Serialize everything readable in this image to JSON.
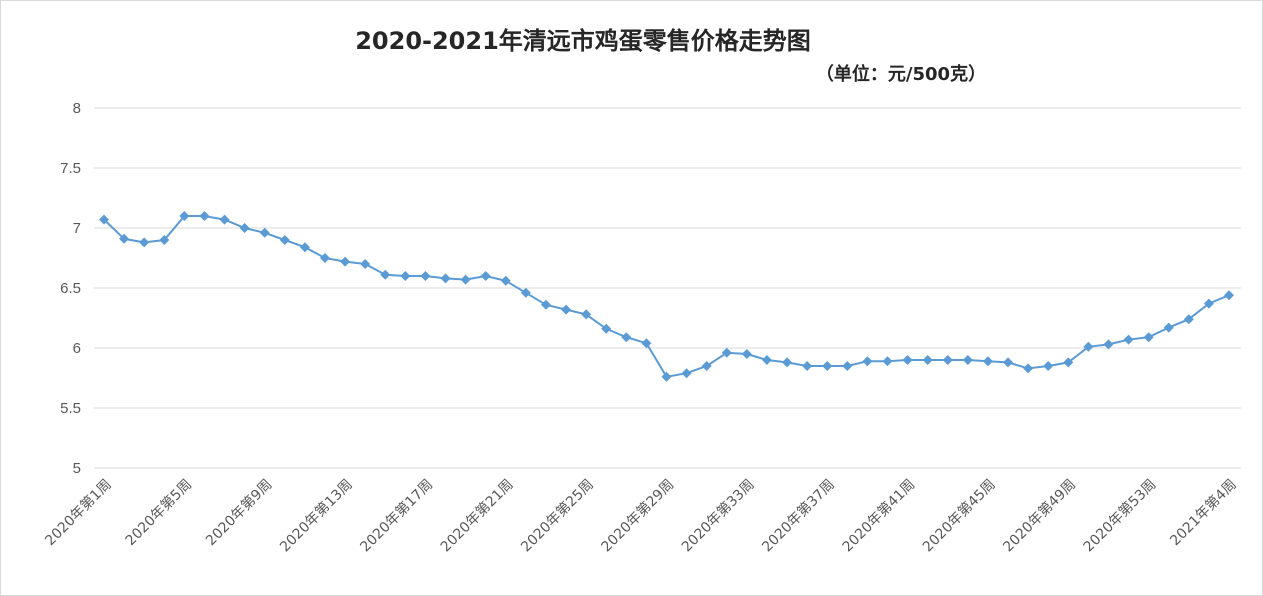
{
  "chart_data": {
    "type": "line",
    "title": "2020-2021年清远市鸡蛋零售价格走势图",
    "subtitle": "（单位：元/500克）",
    "xlabel": "",
    "ylabel": "",
    "ylim": [
      5,
      8
    ],
    "yticks": [
      "5",
      "5.5",
      "6",
      "6.5",
      "7",
      "7.5",
      "8"
    ],
    "grid": true,
    "legend": "none",
    "series_color": "#5B9BD5",
    "categories": [
      "2020年第1周",
      "2020年第2周",
      "2020年第3周",
      "2020年第4周",
      "2020年第5周",
      "2020年第6周",
      "2020年第7周",
      "2020年第8周",
      "2020年第9周",
      "2020年第10周",
      "2020年第11周",
      "2020年第12周",
      "2020年第13周",
      "2020年第14周",
      "2020年第15周",
      "2020年第16周",
      "2020年第17周",
      "2020年第18周",
      "2020年第19周",
      "2020年第20周",
      "2020年第21周",
      "2020年第22周",
      "2020年第23周",
      "2020年第24周",
      "2020年第25周",
      "2020年第26周",
      "2020年第27周",
      "2020年第28周",
      "2020年第29周",
      "2020年第30周",
      "2020年第31周",
      "2020年第32周",
      "2020年第33周",
      "2020年第34周",
      "2020年第35周",
      "2020年第36周",
      "2020年第37周",
      "2020年第38周",
      "2020年第39周",
      "2020年第40周",
      "2020年第41周",
      "2020年第42周",
      "2020年第43周",
      "2020年第44周",
      "2020年第45周",
      "2020年第46周",
      "2020年第47周",
      "2020年第48周",
      "2020年第49周",
      "2020年第50周",
      "2020年第51周",
      "2020年第52周",
      "2020年第53周",
      "2021年第1周",
      "2021年第2周",
      "2021年第3周",
      "2021年第4周"
    ],
    "x_tick_labels": [
      "2020年第1周",
      "2020年第5周",
      "2020年第9周",
      "2020年第13周",
      "2020年第17周",
      "2020年第21周",
      "2020年第25周",
      "2020年第29周",
      "2020年第33周",
      "2020年第37周",
      "2020年第41周",
      "2020年第45周",
      "2020年第49周",
      "2020年第53周",
      "2021年第4周"
    ],
    "series": [
      {
        "values": [
          7.07,
          6.91,
          6.88,
          6.9,
          7.1,
          7.1,
          7.07,
          7.0,
          6.96,
          6.9,
          6.84,
          6.75,
          6.72,
          6.7,
          6.61,
          6.6,
          6.6,
          6.58,
          6.57,
          6.6,
          6.56,
          6.46,
          6.36,
          6.32,
          6.28,
          6.16,
          6.09,
          6.04,
          5.76,
          5.79,
          5.85,
          5.96,
          5.95,
          5.9,
          5.88,
          5.85,
          5.85,
          5.85,
          5.89,
          5.89,
          5.9,
          5.9,
          5.9,
          5.9,
          5.89,
          5.88,
          5.83,
          5.85,
          5.88,
          6.01,
          6.03,
          6.07,
          6.09,
          6.17,
          6.24,
          6.37,
          6.44
        ]
      }
    ]
  }
}
